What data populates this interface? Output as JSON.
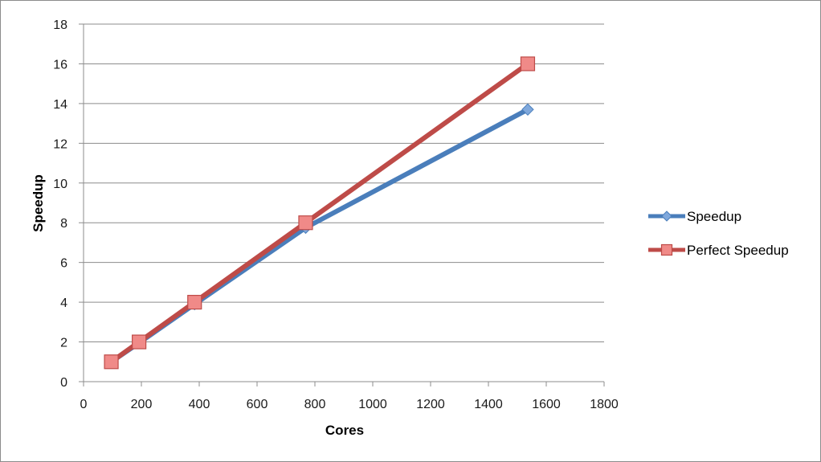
{
  "chart_data": {
    "type": "line",
    "xlabel": "Cores",
    "ylabel": "Speedup",
    "xlim": [
      0,
      1800
    ],
    "ylim": [
      0,
      18
    ],
    "x_ticks": [
      0,
      200,
      400,
      600,
      800,
      1000,
      1200,
      1400,
      1600,
      1800
    ],
    "y_ticks": [
      0,
      2,
      4,
      6,
      8,
      10,
      12,
      14,
      16,
      18
    ],
    "grid": "horizontal",
    "legend_position": "right",
    "series": [
      {
        "name": "Speedup",
        "color": "#4a7ebb",
        "marker": "diamond",
        "marker_color": "#7fa8dc",
        "points": [
          [
            96,
            1
          ],
          [
            192,
            1.95
          ],
          [
            384,
            3.9
          ],
          [
            768,
            7.75
          ],
          [
            1536,
            13.7
          ]
        ]
      },
      {
        "name": "Perfect Speedup",
        "color": "#be4b48",
        "marker": "square",
        "marker_color": "#f08a88",
        "points": [
          [
            96,
            1
          ],
          [
            192,
            2
          ],
          [
            384,
            4
          ],
          [
            768,
            8
          ],
          [
            1536,
            16
          ]
        ]
      }
    ]
  }
}
